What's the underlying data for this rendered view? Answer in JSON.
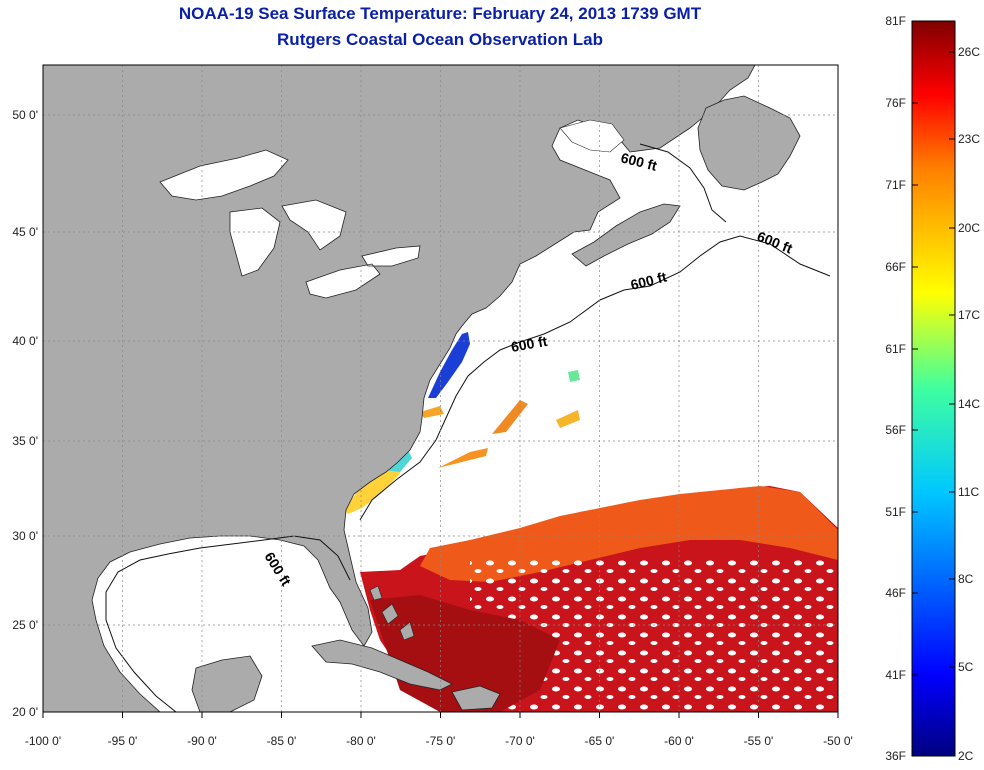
{
  "title_line1": "NOAA-19 Sea Surface Temperature:  February 24, 2013 1739 GMT",
  "title_line2": "Rutgers Coastal Ocean Observation Lab",
  "axes": {
    "lon_labels": [
      "-100 0'",
      "-95 0'",
      "-90 0'",
      "-85 0'",
      "-80 0'",
      "-75 0'",
      "-70 0'",
      "-65 0'",
      "-60 0'",
      "-55 0'",
      "-50 0'"
    ],
    "lat_labels": [
      "50 0'",
      "45 0'",
      "40 0'",
      "35 0'",
      "30 0'",
      "25 0'",
      "20 0'"
    ]
  },
  "contour_label": "600 ft",
  "colorbar": {
    "fahrenheit_labels": [
      "81F",
      "76F",
      "71F",
      "66F",
      "61F",
      "56F",
      "51F",
      "46F",
      "41F",
      "36F"
    ],
    "celsius_labels": [
      "26C",
      "23C",
      "20C",
      "17C",
      "14C",
      "11C",
      "8C",
      "5C",
      "2C"
    ]
  },
  "colors": {
    "land": "#ababab",
    "title": "#0a1fa8",
    "warm": "#c8141a",
    "cold": "#1b3fd6"
  }
}
